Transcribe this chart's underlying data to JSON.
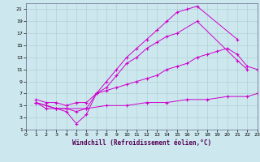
{
  "xlabel": "Windchill (Refroidissement éolien,°C)",
  "xlim": [
    0,
    23
  ],
  "ylim": [
    1,
    22
  ],
  "xticks": [
    0,
    1,
    2,
    3,
    4,
    5,
    6,
    7,
    8,
    9,
    10,
    11,
    12,
    13,
    14,
    15,
    16,
    17,
    18,
    19,
    20,
    21,
    22,
    23
  ],
  "yticks": [
    1,
    3,
    5,
    7,
    9,
    11,
    13,
    15,
    17,
    19,
    21
  ],
  "background_color": "#cce8ee",
  "grid_color": "#aacccc",
  "line_color": "#cc00cc",
  "curve1_x": [
    1,
    2,
    3,
    4,
    5,
    6,
    7,
    8,
    9,
    10,
    11,
    12,
    13,
    14,
    15,
    16,
    17,
    21
  ],
  "curve1_y": [
    6,
    5.5,
    5.5,
    5,
    5.5,
    5.5,
    7,
    9,
    11,
    13,
    14.5,
    16,
    17.5,
    19,
    20.5,
    21,
    21.5,
    16
  ],
  "curve2_x": [
    1,
    2,
    3,
    4,
    5,
    6,
    7,
    8,
    9,
    10,
    11,
    12,
    13,
    14,
    15,
    17,
    21,
    22
  ],
  "curve2_y": [
    5.5,
    5,
    4.5,
    4.5,
    4,
    4.5,
    7,
    8,
    10,
    12,
    13,
    14.5,
    15.5,
    16.5,
    17,
    19,
    12.5,
    11
  ],
  "curve3_x": [
    1,
    3,
    4,
    5,
    6,
    7,
    8,
    9,
    10,
    11,
    12,
    13,
    14,
    15,
    16,
    17,
    18,
    19,
    20,
    21,
    22,
    23
  ],
  "curve3_y": [
    5.5,
    4.5,
    4,
    2,
    3.5,
    7,
    7.5,
    8,
    8.5,
    9,
    9.5,
    10,
    11,
    11.5,
    12,
    13,
    13.5,
    14,
    14.5,
    13.5,
    11.5,
    11
  ],
  "curve4_x": [
    1,
    2,
    3,
    4,
    6,
    8,
    10,
    12,
    14,
    16,
    18,
    20,
    22,
    23
  ],
  "curve4_y": [
    5.5,
    4.5,
    4.5,
    4.5,
    4.5,
    5,
    5,
    5.5,
    5.5,
    6,
    6,
    6.5,
    6.5,
    7
  ]
}
